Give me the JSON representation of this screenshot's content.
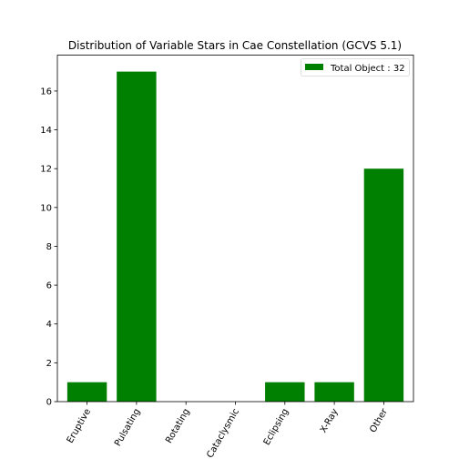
{
  "chart_data": {
    "type": "bar",
    "title": "Distribution of Variable Stars in Cae Constellation (GCVS 5.1)",
    "categories": [
      "Eruptive",
      "Pulsating",
      "Rotating",
      "Cataclysmic",
      "Eclipsing",
      "X-Ray",
      "Other"
    ],
    "series": [
      {
        "name": "Total Object : 32",
        "values": [
          1,
          17,
          0,
          0,
          1,
          1,
          12
        ]
      }
    ],
    "ylim": [
      0,
      17.85
    ],
    "yticks": [
      0,
      2,
      4,
      6,
      8,
      10,
      12,
      14,
      16
    ],
    "xlabel": "",
    "ylabel": "",
    "grid": false,
    "legend_position": "top-right",
    "bar_color": "#008000"
  }
}
